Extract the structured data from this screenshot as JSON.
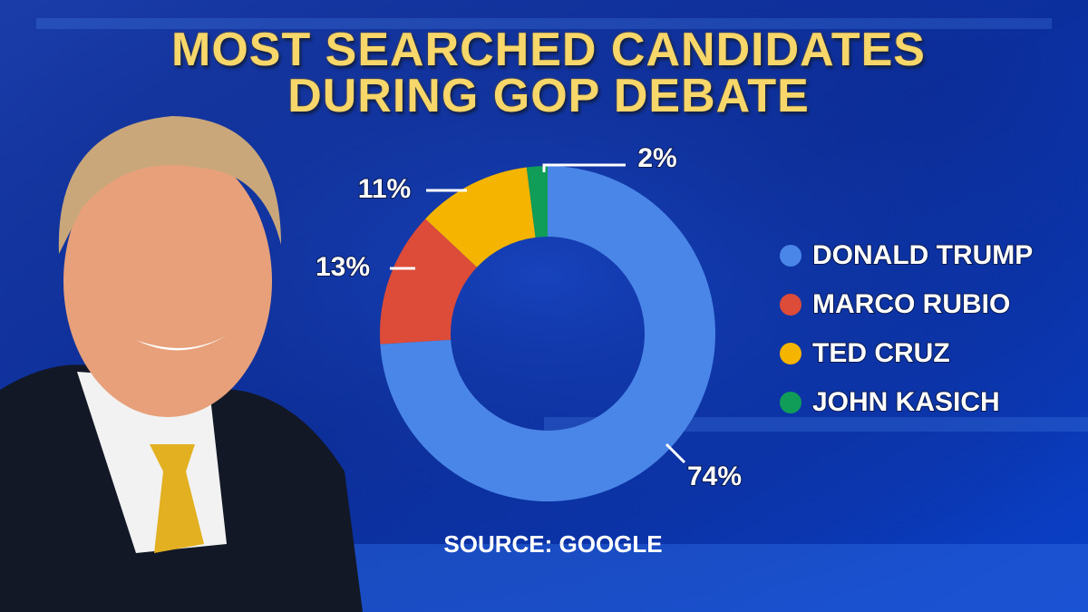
{
  "chart_data": {
    "type": "donut",
    "title": "MOST SEARCHED CANDIDATES DURING GOP DEBATE",
    "source": "SOURCE: GOOGLE",
    "categories": [
      "DONALD TRUMP",
      "MARCO RUBIO",
      "TED CRUZ",
      "JOHN KASICH"
    ],
    "values": [
      74,
      13,
      11,
      2
    ],
    "value_labels": [
      "74%",
      "13%",
      "11%",
      "2%"
    ],
    "colors": [
      "#4a86e8",
      "#dd4b39",
      "#f4b400",
      "#0f9d58"
    ],
    "legend": "right"
  }
}
